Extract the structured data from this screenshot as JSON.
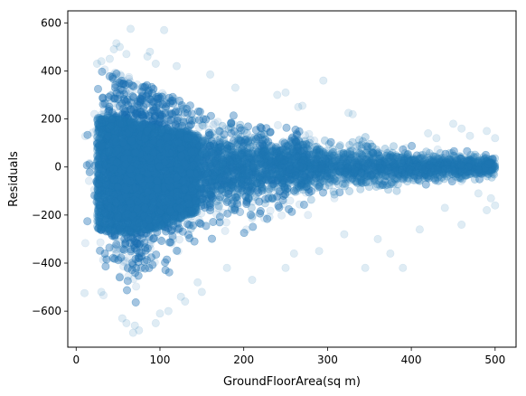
{
  "chart_data": {
    "type": "scatter",
    "title": "",
    "xlabel": "GroundFloorArea(sq m)",
    "ylabel": "Residuals",
    "xlim": [
      -10,
      525
    ],
    "ylim": [
      -750,
      650
    ],
    "xticks": [
      0,
      100,
      200,
      300,
      400,
      500
    ],
    "yticks": [
      -600,
      -400,
      -200,
      0,
      200,
      400,
      600
    ],
    "xtick_labels": [
      "0",
      "100",
      "200",
      "300",
      "400",
      "500"
    ],
    "ytick_labels": [
      "−600",
      "−400",
      "−200",
      "0",
      "200",
      "400",
      "600"
    ],
    "grid": false,
    "legend": "none",
    "marker_color": "#1f77b4",
    "marker_alpha": 0.12,
    "series": [
      {
        "values_description_x_range": [
          10,
          500
        ],
        "points": [
          [
            65,
            575
          ],
          [
            105,
            570
          ],
          [
            48,
            515
          ],
          [
            52,
            500
          ],
          [
            45,
            490
          ],
          [
            88,
            480
          ],
          [
            60,
            470
          ],
          [
            85,
            460
          ],
          [
            40,
            450
          ],
          [
            30,
            440
          ],
          [
            95,
            430
          ],
          [
            120,
            420
          ],
          [
            160,
            385
          ],
          [
            295,
            360
          ],
          [
            25,
            430
          ],
          [
            190,
            330
          ],
          [
            250,
            310
          ],
          [
            240,
            300
          ],
          [
            270,
            255
          ],
          [
            265,
            250
          ],
          [
            325,
            225
          ],
          [
            330,
            220
          ],
          [
            450,
            180
          ],
          [
            460,
            160
          ],
          [
            490,
            150
          ],
          [
            500,
            120
          ],
          [
            470,
            130
          ],
          [
            420,
            140
          ],
          [
            430,
            120
          ],
          [
            10,
            -525
          ],
          [
            30,
            -520
          ],
          [
            55,
            -630
          ],
          [
            70,
            -660
          ],
          [
            75,
            -680
          ],
          [
            68,
            -690
          ],
          [
            60,
            -650
          ],
          [
            95,
            -650
          ],
          [
            110,
            -600
          ],
          [
            100,
            -610
          ],
          [
            150,
            -520
          ],
          [
            130,
            -560
          ],
          [
            125,
            -540
          ],
          [
            145,
            -480
          ],
          [
            180,
            -420
          ],
          [
            210,
            -470
          ],
          [
            250,
            -420
          ],
          [
            260,
            -360
          ],
          [
            290,
            -350
          ],
          [
            345,
            -420
          ],
          [
            390,
            -420
          ],
          [
            375,
            -360
          ],
          [
            410,
            -260
          ],
          [
            460,
            -240
          ],
          [
            490,
            -180
          ],
          [
            500,
            -160
          ],
          [
            495,
            -130
          ],
          [
            480,
            -110
          ],
          [
            440,
            -170
          ],
          [
            360,
            -300
          ],
          [
            320,
            -280
          ]
        ]
      }
    ],
    "envelope": [
      [
        10,
        300,
        -450
      ],
      [
        30,
        360,
        -480
      ],
      [
        60,
        330,
        -500
      ],
      [
        90,
        290,
        -480
      ],
      [
        120,
        250,
        -400
      ],
      [
        150,
        220,
        -330
      ],
      [
        200,
        180,
        -260
      ],
      [
        250,
        150,
        -210
      ],
      [
        300,
        120,
        -170
      ],
      [
        350,
        100,
        -140
      ],
      [
        400,
        80,
        -115
      ],
      [
        450,
        65,
        -90
      ],
      [
        500,
        50,
        -70
      ]
    ]
  }
}
